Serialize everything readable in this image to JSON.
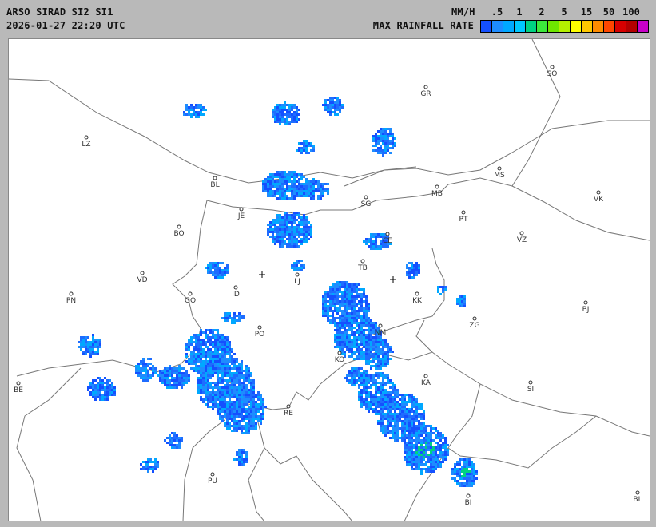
{
  "header": {
    "title": "ARSO SIRAD SI2 SI1",
    "timestamp": "2026-01-27 22:20 UTC"
  },
  "legend": {
    "unit": "MM/H",
    "label": "MAX RAINFALL RATE",
    "ticks": [
      ".5",
      "1",
      "2",
      "5",
      "15",
      "50",
      "100"
    ],
    "colors": [
      "#1450ff",
      "#1e8cff",
      "#00a8ff",
      "#00c8ff",
      "#00d282",
      "#3ce83c",
      "#6ee600",
      "#b4f000",
      "#ffff00",
      "#ffc800",
      "#ff8c00",
      "#ff4600",
      "#d70000",
      "#b40000",
      "#c800c8"
    ]
  },
  "map": {
    "cities": [
      "GR",
      "SO",
      "LZ",
      "MS",
      "MB",
      "BL",
      "VK",
      "SG",
      "JE",
      "PT",
      "BO",
      "CE",
      "VZ",
      "TB",
      "VD",
      "LJ",
      "KK",
      "PN",
      "GO",
      "ID",
      "BJ",
      "ZG",
      "PO",
      "NM",
      "KO",
      "KA",
      "SI",
      "BE",
      "RE",
      "PU",
      "BI",
      "BL"
    ],
    "border_color": "#777777",
    "markers": [
      "radar-site-cross",
      "radar-site-cross"
    ]
  }
}
